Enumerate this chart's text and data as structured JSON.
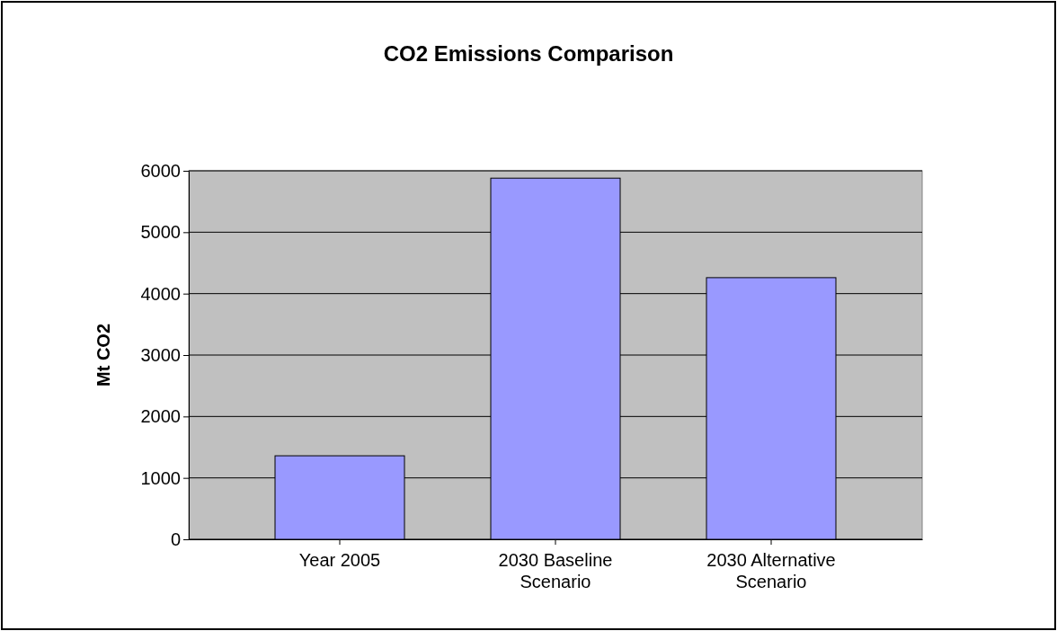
{
  "chart_data": {
    "type": "bar",
    "title": "CO2 Emissions Comparison",
    "ylabel": "Mt CO2",
    "categories": [
      "Year 2005",
      "2030 Baseline Scenario",
      "2030 Alternative Scenario"
    ],
    "values": [
      1360,
      5880,
      4260
    ],
    "color": "#9999ff",
    "ylim": [
      0,
      6000
    ],
    "yticks": [
      0,
      1000,
      2000,
      3000,
      4000,
      5000,
      6000
    ],
    "grid": "y"
  }
}
